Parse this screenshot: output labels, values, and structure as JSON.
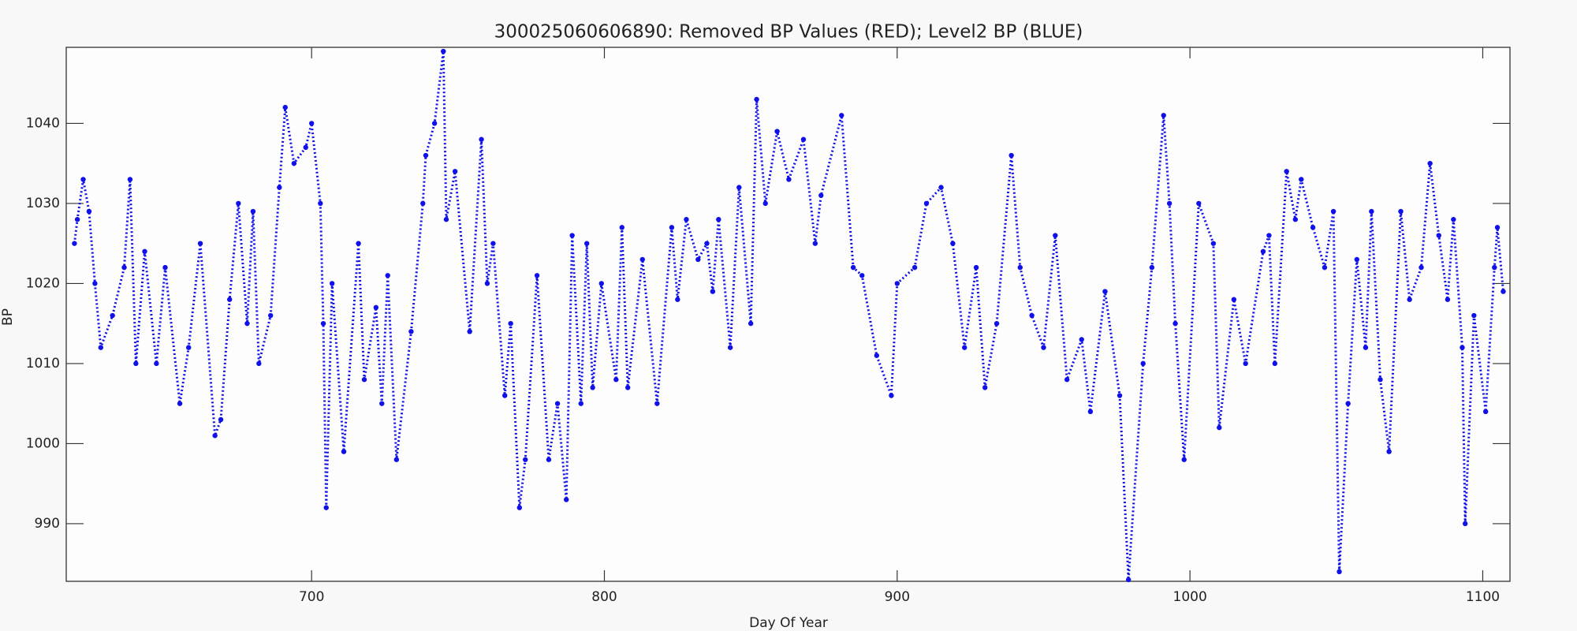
{
  "chart_data": {
    "type": "scatter",
    "title": "300025060606890: Removed BP Values (RED); Level2 BP (BLUE)",
    "x_label": "Day Of Year",
    "y_label": "BP",
    "xlim": [
      616.2,
      1109.3
    ],
    "ylim": [
      982.8,
      1049.5
    ],
    "xticks": [
      700,
      800,
      900,
      1000,
      1100
    ],
    "yticks": [
      990,
      1000,
      1010,
      1020,
      1030,
      1040
    ],
    "grid": false,
    "series": [
      {
        "name": "Level2 BP",
        "color": "#1010e8",
        "x": [
          619,
          620,
          622,
          624,
          626,
          628,
          632,
          636,
          638,
          640,
          643,
          647,
          650,
          655,
          658,
          662,
          667,
          669,
          672,
          675,
          678,
          680,
          682,
          686,
          689,
          691,
          694,
          698,
          700,
          703,
          704,
          705,
          707,
          711,
          716,
          718,
          722,
          724,
          726,
          729,
          734,
          738,
          739,
          742,
          745,
          746,
          749,
          754,
          758,
          760,
          762,
          766,
          768,
          771,
          773,
          777,
          781,
          784,
          787,
          789,
          792,
          794,
          796,
          799,
          804,
          806,
          808,
          813,
          818,
          823,
          825,
          828,
          832,
          835,
          837,
          839,
          843,
          846,
          850,
          852,
          855,
          859,
          863,
          868,
          872,
          874,
          881,
          885,
          888,
          893,
          898,
          900,
          906,
          910,
          915,
          919,
          923,
          927,
          930,
          934,
          939,
          942,
          946,
          950,
          954,
          958,
          963,
          966,
          971,
          976,
          979,
          984,
          987,
          991,
          993,
          995,
          998,
          1003,
          1008,
          1010,
          1015,
          1019,
          1025,
          1027,
          1029,
          1033,
          1036,
          1038,
          1042,
          1046,
          1049,
          1051,
          1054,
          1057,
          1060,
          1062,
          1065,
          1068,
          1072,
          1075,
          1079,
          1082,
          1085,
          1088,
          1090,
          1093,
          1094,
          1097,
          1101,
          1104,
          1105,
          1107
        ],
        "values": [
          1025,
          1028,
          1033,
          1029,
          1020,
          1012,
          1016,
          1022,
          1033,
          1010,
          1024,
          1010,
          1022,
          1005,
          1012,
          1025,
          1001,
          1003,
          1018,
          1030,
          1015,
          1029,
          1010,
          1016,
          1032,
          1042,
          1035,
          1037,
          1040,
          1030,
          1015,
          992,
          1020,
          999,
          1025,
          1008,
          1017,
          1005,
          1021,
          998,
          1014,
          1030,
          1036,
          1040,
          1049,
          1028,
          1034,
          1014,
          1038,
          1020,
          1025,
          1006,
          1015,
          992,
          998,
          1021,
          998,
          1005,
          993,
          1026,
          1005,
          1025,
          1007,
          1020,
          1008,
          1027,
          1007,
          1023,
          1005,
          1027,
          1018,
          1028,
          1023,
          1025,
          1019,
          1028,
          1012,
          1032,
          1015,
          1043,
          1030,
          1039,
          1033,
          1038,
          1025,
          1031,
          1041,
          1022,
          1021,
          1011,
          1006,
          1020,
          1022,
          1030,
          1032,
          1025,
          1012,
          1022,
          1007,
          1015,
          1036,
          1022,
          1016,
          1012,
          1026,
          1008,
          1013,
          1004,
          1019,
          1006,
          983,
          1010,
          1022,
          1041,
          1030,
          1015,
          998,
          1030,
          1025,
          1002,
          1018,
          1010,
          1024,
          1026,
          1010,
          1034,
          1028,
          1033,
          1027,
          1022,
          1029,
          984,
          1005,
          1023,
          1012,
          1029,
          1008,
          999,
          1029,
          1018,
          1022,
          1035,
          1026,
          1018,
          1028,
          1012,
          990,
          1016,
          1004,
          1022,
          1027,
          1019
        ]
      }
    ]
  }
}
